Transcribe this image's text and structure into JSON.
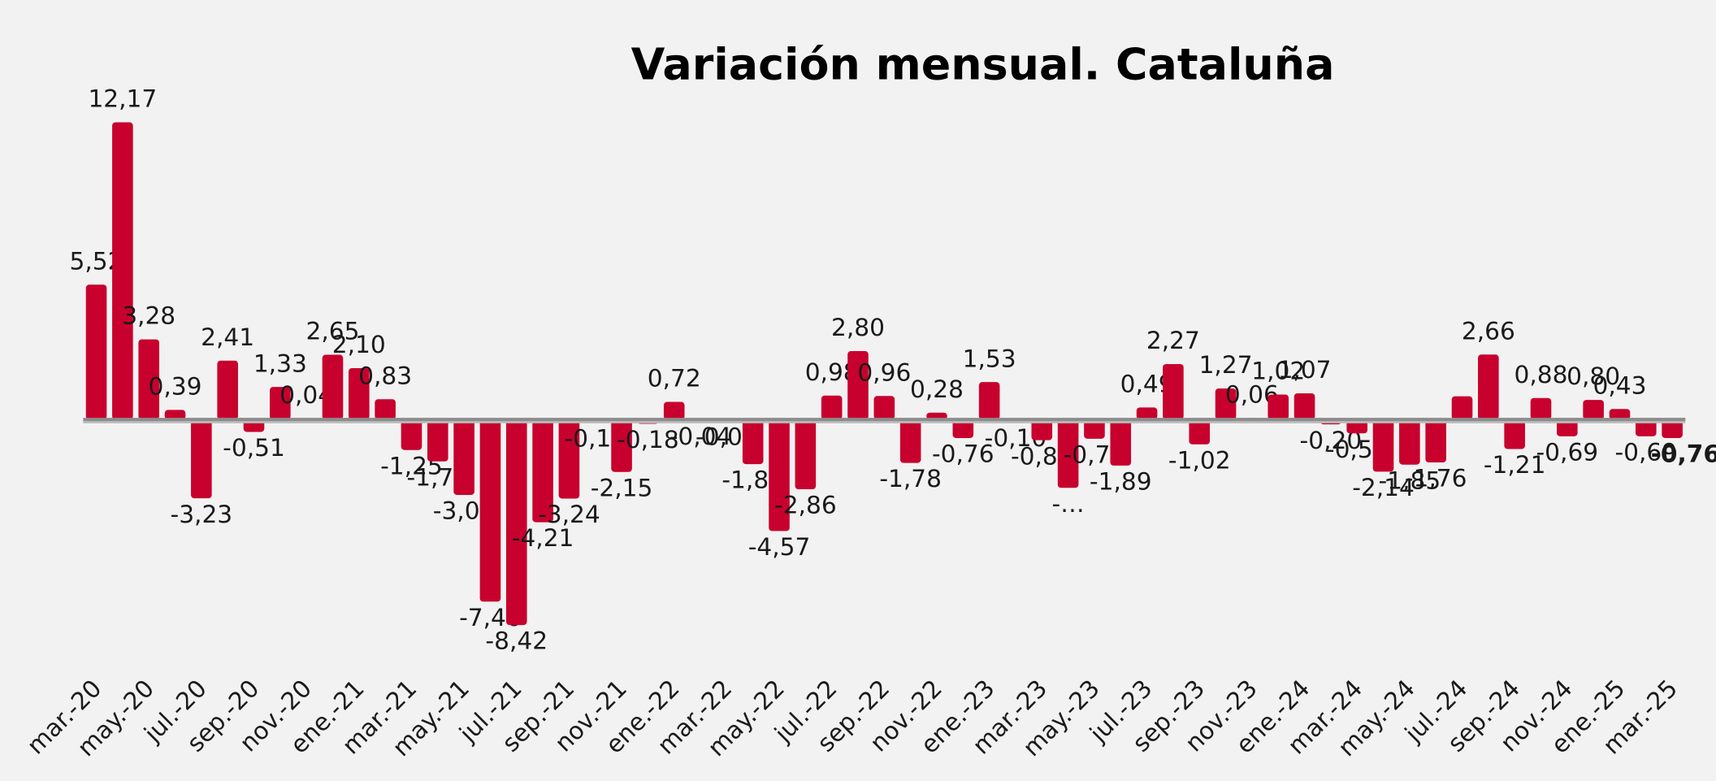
{
  "chart_data": {
    "type": "bar",
    "title": "Variación mensual. Cataluña",
    "categories": [
      "mar.-20",
      null,
      "may.-20",
      null,
      "jul.-20",
      null,
      "sep.-20",
      null,
      "nov.-20",
      null,
      "ene.-21",
      null,
      "mar.-21",
      null,
      "may.-21",
      null,
      "jul.-21",
      null,
      "sep.-21",
      null,
      "nov.-21",
      null,
      "ene.-22",
      null,
      "mar.-22",
      null,
      "may.-22",
      null,
      "jul.-22",
      null,
      "sep.-22",
      null,
      "nov.-22",
      null,
      "ene.-23",
      null,
      "mar.-23",
      null,
      "may.-23",
      null,
      "jul.-23",
      null,
      "sep.-23",
      null,
      "nov.-23",
      null,
      "ene.-24",
      null,
      "mar.-24",
      null,
      "may.-24",
      null,
      "jul.-24",
      null,
      "sep.-24",
      null,
      "nov.-24",
      null,
      "ene.-25",
      null,
      "mar.-25"
    ],
    "values": [
      5.52,
      12.17,
      3.28,
      0.39,
      -3.23,
      2.41,
      -0.51,
      1.33,
      0.04,
      2.65,
      2.1,
      0.83,
      -1.25,
      -1.72,
      -3.09,
      -7.46,
      -8.42,
      -4.21,
      -3.24,
      -0.13,
      -2.15,
      -0.18,
      0.72,
      -0.04,
      -0.05,
      -1.83,
      -4.57,
      -2.86,
      0.98,
      2.8,
      0.96,
      -1.78,
      0.28,
      -0.76,
      1.53,
      -0.1,
      -0.85,
      -2.8,
      -0.79,
      -1.89,
      0.49,
      2.27,
      -1.02,
      1.27,
      0.06,
      1.02,
      1.07,
      -0.2,
      -0.57,
      -2.14,
      -1.85,
      -1.76,
      0.95,
      2.66,
      -1.21,
      0.88,
      -0.69,
      0.8,
      0.43,
      -0.69,
      -0.76
    ],
    "value_labels": [
      "5,52",
      "12,17",
      "3,28",
      "0,39",
      "-3,23",
      "2,41",
      "-0,51",
      "1,33",
      "0,04",
      "2,65",
      "2,10",
      "0,83",
      "-1,25",
      "-1,72",
      "-3,09",
      "-7,46",
      "-8,42",
      "-4,21",
      "-3,24",
      "-0,13",
      "-2,15",
      "-0,18",
      "0,72",
      "-0,04",
      "-0,05",
      "-1,83",
      "-4,57",
      "-2,86",
      "0,98",
      "2,80",
      "0,96",
      "-1,78",
      "0,28",
      "-0,76",
      "1,53",
      "-0,10",
      "-0,85",
      "-…",
      "-0,79",
      "-1,89",
      "0,49",
      "2,27",
      "-1,02",
      "1,27",
      "0,06",
      "1,02",
      "1,07",
      "-0,20",
      "-0,57",
      "-2,14",
      "-1,85",
      "-1,76",
      null,
      "2,66",
      "-1,21",
      "0,88",
      "-0,69",
      "0,80",
      "0,43",
      "-0,69",
      "-0,76"
    ],
    "color": "#c8002d",
    "ylim": [
      -10,
      13
    ]
  }
}
